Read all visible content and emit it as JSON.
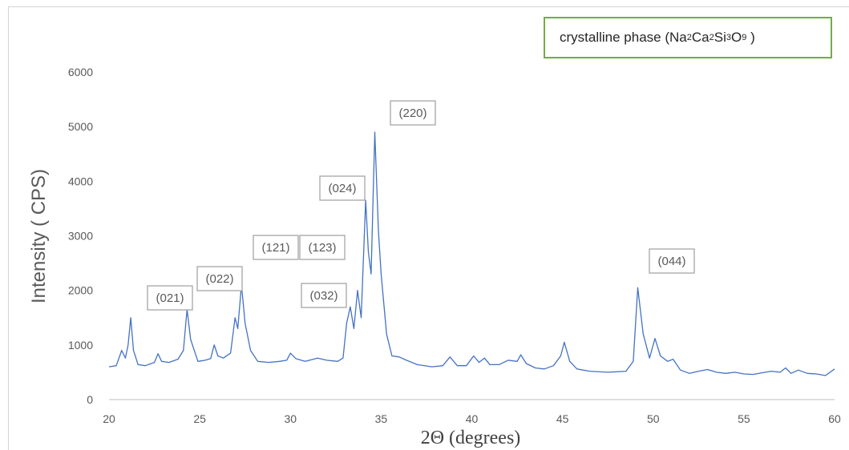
{
  "chart_data": {
    "type": "line",
    "xlabel": "2Θ (degrees)",
    "ylabel": "Intensity ( CPS)",
    "xlim": [
      20,
      60
    ],
    "ylim": [
      0,
      6000
    ],
    "x_ticks": [
      "20",
      "25",
      "30",
      "35",
      "40",
      "45",
      "50",
      "55",
      "60"
    ],
    "y_ticks": [
      "0",
      "1000",
      "2000",
      "3000",
      "4000",
      "5000",
      "6000"
    ],
    "grid": false,
    "line_color": "#4472c4",
    "legend": {
      "prefix": "crystalline phase (",
      "formula": [
        {
          "text": "Na"
        },
        {
          "sub": "2"
        },
        {
          "text": "Ca"
        },
        {
          "sub": "2"
        },
        {
          "text": "Si"
        },
        {
          "sub": "3"
        },
        {
          "text": "O"
        },
        {
          "sub": "9"
        }
      ],
      "suffix": " )",
      "border_color": "#70ad47"
    },
    "annotations": [
      "(021)",
      "(022)",
      "(121)",
      "(123)",
      "(032)",
      "(024)",
      "(220)",
      "(044)"
    ],
    "series": [
      {
        "points": [
          [
            20.0,
            600
          ],
          [
            20.4,
            620
          ],
          [
            20.7,
            900
          ],
          [
            20.9,
            760
          ],
          [
            21.05,
            1000
          ],
          [
            21.2,
            1500
          ],
          [
            21.35,
            900
          ],
          [
            21.6,
            640
          ],
          [
            22.0,
            620
          ],
          [
            22.5,
            680
          ],
          [
            22.7,
            840
          ],
          [
            22.9,
            700
          ],
          [
            23.3,
            680
          ],
          [
            23.8,
            740
          ],
          [
            24.1,
            900
          ],
          [
            24.3,
            1650
          ],
          [
            24.5,
            1100
          ],
          [
            24.7,
            900
          ],
          [
            24.9,
            700
          ],
          [
            25.3,
            720
          ],
          [
            25.6,
            750
          ],
          [
            25.8,
            1000
          ],
          [
            26.0,
            800
          ],
          [
            26.3,
            760
          ],
          [
            26.7,
            850
          ],
          [
            26.95,
            1500
          ],
          [
            27.1,
            1300
          ],
          [
            27.3,
            2100
          ],
          [
            27.5,
            1400
          ],
          [
            27.8,
            900
          ],
          [
            28.2,
            700
          ],
          [
            28.8,
            680
          ],
          [
            29.4,
            700
          ],
          [
            29.8,
            720
          ],
          [
            30.0,
            850
          ],
          [
            30.3,
            750
          ],
          [
            30.8,
            700
          ],
          [
            31.5,
            760
          ],
          [
            32.0,
            720
          ],
          [
            32.6,
            700
          ],
          [
            32.9,
            760
          ],
          [
            33.1,
            1400
          ],
          [
            33.3,
            1700
          ],
          [
            33.5,
            1300
          ],
          [
            33.7,
            2000
          ],
          [
            33.9,
            1500
          ],
          [
            34.15,
            3650
          ],
          [
            34.3,
            2700
          ],
          [
            34.45,
            2300
          ],
          [
            34.65,
            4900
          ],
          [
            34.85,
            3100
          ],
          [
            35.0,
            2300
          ],
          [
            35.3,
            1200
          ],
          [
            35.6,
            800
          ],
          [
            36.0,
            780
          ],
          [
            36.4,
            720
          ],
          [
            37.0,
            640
          ],
          [
            37.8,
            600
          ],
          [
            38.4,
            620
          ],
          [
            38.8,
            780
          ],
          [
            39.2,
            620
          ],
          [
            39.7,
            620
          ],
          [
            40.1,
            800
          ],
          [
            40.4,
            680
          ],
          [
            40.7,
            760
          ],
          [
            41.0,
            640
          ],
          [
            41.5,
            640
          ],
          [
            42.0,
            720
          ],
          [
            42.5,
            700
          ],
          [
            42.7,
            820
          ],
          [
            43.0,
            660
          ],
          [
            43.5,
            580
          ],
          [
            44.0,
            560
          ],
          [
            44.5,
            620
          ],
          [
            44.9,
            800
          ],
          [
            45.1,
            1050
          ],
          [
            45.4,
            700
          ],
          [
            45.8,
            560
          ],
          [
            46.5,
            520
          ],
          [
            47.5,
            500
          ],
          [
            48.5,
            520
          ],
          [
            48.9,
            700
          ],
          [
            49.15,
            2050
          ],
          [
            49.45,
            1200
          ],
          [
            49.8,
            760
          ],
          [
            50.1,
            1120
          ],
          [
            50.4,
            800
          ],
          [
            50.8,
            700
          ],
          [
            51.1,
            740
          ],
          [
            51.5,
            540
          ],
          [
            52.0,
            480
          ],
          [
            52.5,
            520
          ],
          [
            53.0,
            550
          ],
          [
            53.5,
            500
          ],
          [
            54.0,
            480
          ],
          [
            54.5,
            500
          ],
          [
            55.0,
            470
          ],
          [
            55.5,
            460
          ],
          [
            56.0,
            490
          ],
          [
            56.5,
            520
          ],
          [
            57.0,
            500
          ],
          [
            57.3,
            580
          ],
          [
            57.6,
            480
          ],
          [
            58.0,
            540
          ],
          [
            58.5,
            480
          ],
          [
            59.0,
            470
          ],
          [
            59.5,
            440
          ],
          [
            60.0,
            560
          ]
        ]
      }
    ]
  }
}
